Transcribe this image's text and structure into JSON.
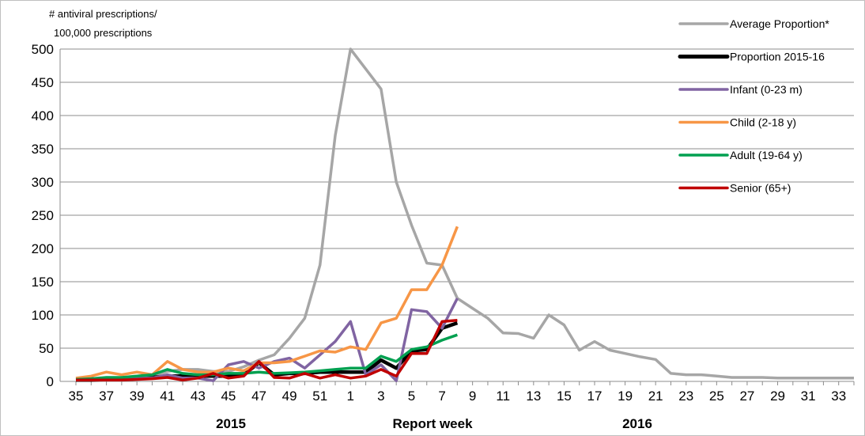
{
  "chart_data": {
    "type": "line",
    "ylabel_line1": "# antiviral prescriptions/",
    "ylabel_line2": "100,000 prescriptions",
    "xlabel": "Report week",
    "ylim": [
      0,
      500
    ],
    "yticks": [
      "0",
      "50",
      "100",
      "150",
      "200",
      "250",
      "300",
      "350",
      "400",
      "450",
      "500"
    ],
    "x_weeks": [
      35,
      36,
      37,
      38,
      39,
      40,
      41,
      42,
      43,
      44,
      45,
      46,
      47,
      48,
      49,
      50,
      51,
      52,
      1,
      2,
      3,
      4,
      5,
      6,
      7,
      8,
      9,
      10,
      11,
      12,
      13,
      14,
      15,
      16,
      17,
      18,
      19,
      20,
      21,
      22,
      23,
      24,
      25,
      26,
      27,
      28,
      29,
      30,
      31,
      32,
      33,
      34
    ],
    "x_tick_labels": [
      "35",
      "37",
      "39",
      "41",
      "43",
      "45",
      "47",
      "49",
      "51",
      "1",
      "3",
      "5",
      "7",
      "9",
      "11",
      "13",
      "15",
      "17",
      "19",
      "21",
      "23",
      "25",
      "27",
      "29",
      "31",
      "33"
    ],
    "year_labels": [
      "2015",
      "2016"
    ],
    "grid": "horizontal",
    "legend_position": "top-right",
    "series": [
      {
        "name": "Average Proportion*",
        "color": "#a6a6a6",
        "values": [
          3,
          3,
          4,
          5,
          6,
          8,
          15,
          18,
          18,
          15,
          15,
          22,
          32,
          40,
          65,
          95,
          175,
          370,
          500,
          470,
          440,
          300,
          235,
          178,
          175,
          125,
          110,
          95,
          73,
          72,
          65,
          100,
          85,
          47,
          60,
          47,
          42,
          37,
          33,
          12,
          10,
          10,
          8,
          6,
          6,
          6,
          5,
          5,
          5,
          5,
          5,
          5
        ]
      },
      {
        "name": "Proportion 2015-16",
        "color": "#000000",
        "values": [
          2,
          2,
          3,
          3,
          4,
          6,
          8,
          8,
          8,
          8,
          8,
          10,
          28,
          10,
          12,
          12,
          14,
          14,
          14,
          14,
          32,
          20,
          46,
          48,
          80,
          88
        ]
      },
      {
        "name": "Infant (0-23 m)",
        "color": "#8064a2",
        "values": [
          2,
          5,
          2,
          5,
          5,
          5,
          10,
          5,
          5,
          1,
          25,
          30,
          20,
          30,
          35,
          20,
          40,
          60,
          90,
          10,
          25,
          1,
          108,
          105,
          80,
          125
        ]
      },
      {
        "name": "Child (2-18 y)",
        "color": "#f79646",
        "values": [
          5,
          8,
          14,
          10,
          14,
          10,
          30,
          18,
          14,
          14,
          20,
          16,
          28,
          28,
          30,
          38,
          46,
          44,
          52,
          48,
          88,
          95,
          138,
          138,
          175,
          233
        ]
      },
      {
        "name": "Adult (19-64 y)",
        "color": "#00a050",
        "values": [
          3,
          4,
          6,
          6,
          8,
          10,
          18,
          12,
          10,
          10,
          12,
          12,
          14,
          12,
          13,
          14,
          16,
          18,
          20,
          20,
          38,
          30,
          48,
          52,
          62,
          70
        ]
      },
      {
        "name": "Senior (65+)",
        "color": "#c00000",
        "values": [
          2,
          2,
          2,
          2,
          3,
          4,
          6,
          2,
          5,
          12,
          5,
          8,
          30,
          6,
          5,
          12,
          5,
          10,
          5,
          8,
          18,
          8,
          42,
          42,
          90,
          92
        ]
      }
    ]
  }
}
